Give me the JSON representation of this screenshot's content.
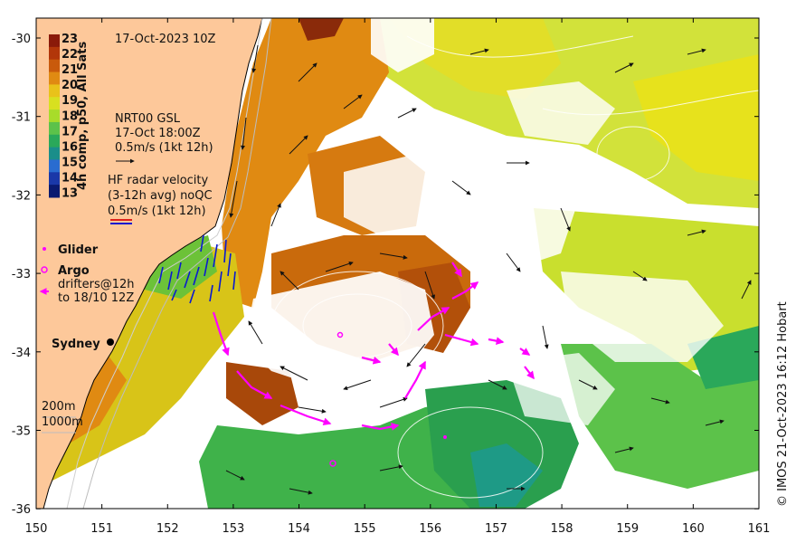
{
  "timestamp": "17-Oct-2023 10Z",
  "colorbar": {
    "label": "4h comp, p50, All Sats",
    "ticks": [
      "23",
      "22",
      "21",
      "20",
      "19",
      "18",
      "17",
      "16",
      "15",
      "14",
      "13"
    ],
    "colors": [
      "#8a1a0a",
      "#b2360a",
      "#c95a0c",
      "#e08a12",
      "#e9c21a",
      "#d8e020",
      "#a8dc2a",
      "#5cc24a",
      "#2aa85a",
      "#1a8e8a",
      "#2a6cd0",
      "#1a38a8",
      "#0a1a70"
    ]
  },
  "gsl": {
    "title": "NRT00 GSL",
    "time": "17-Oct 18:00Z",
    "scale": "0.5m/s (1kt 12h)"
  },
  "hf_radar": {
    "title": "HF radar velocity",
    "avg": "(3-12h avg) noQC",
    "scale": "0.5m/s (1kt 12h)"
  },
  "legend": {
    "glider": "Glider",
    "argo": "Argo",
    "drifters_line1": "drifters@12h",
    "drifters_line2": "to 18/10 12Z",
    "glider_color": "#ff00ff",
    "argo_color": "#ff00ff",
    "drifter_color": "#ff00ff"
  },
  "city": "Sydney",
  "isobaths": [
    "200m",
    "1000m"
  ],
  "x_ticks": [
    "150",
    "151",
    "152",
    "153",
    "154",
    "155",
    "156",
    "157",
    "158",
    "159",
    "160",
    "161"
  ],
  "y_ticks": [
    "-30",
    "-31",
    "-32",
    "-33",
    "-34",
    "-35",
    "-36"
  ],
  "credit": "© IMOS 21-Oct-2023 16:12 Hobart",
  "colors": {
    "land": "#fdc89a",
    "coast": "#000000"
  }
}
